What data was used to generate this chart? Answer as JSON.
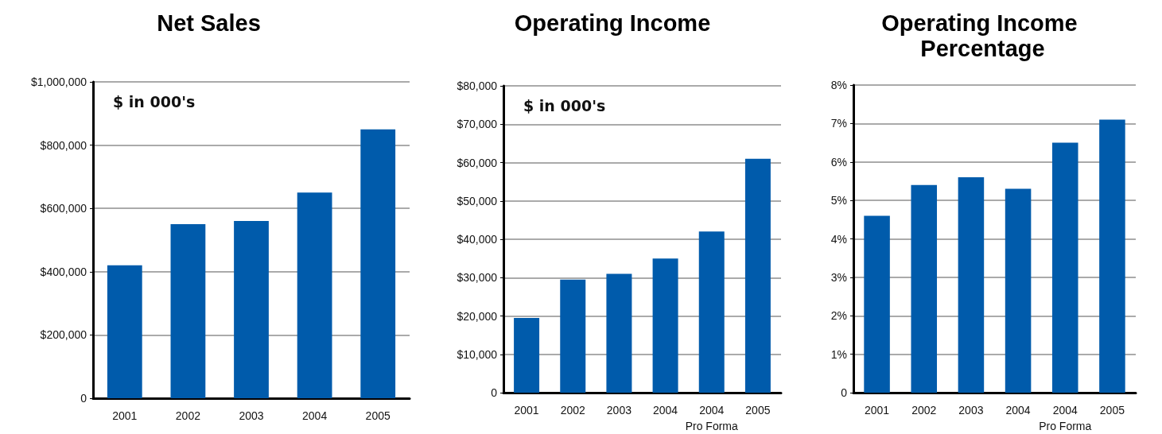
{
  "chart_data": [
    {
      "type": "bar",
      "title": "Net Sales",
      "annotations": [
        "$ in 000's"
      ],
      "categories": [
        "2001",
        "2002",
        "2003",
        "2004",
        "2005"
      ],
      "values": [
        420000,
        550000,
        560000,
        650000,
        850000
      ],
      "color": "#005bab",
      "ylim": [
        0,
        1000000
      ],
      "yticks": [
        {
          "value": 0,
          "label": "0"
        },
        {
          "value": 200000,
          "label": "$200,000"
        },
        {
          "value": 400000,
          "label": "$400,000"
        },
        {
          "value": 600000,
          "label": "$600,000"
        },
        {
          "value": 800000,
          "label": "$800,000"
        },
        {
          "value": 1000000,
          "label": "$1,000,000"
        }
      ],
      "grid": "y"
    },
    {
      "type": "bar",
      "title": "Operating Income",
      "annotations": [
        "$ in 000's"
      ],
      "categories": [
        "2001",
        "2002",
        "2003",
        "2004",
        "2004\nPro Forma",
        "2005"
      ],
      "values": [
        19500,
        29500,
        31000,
        35000,
        42000,
        61000
      ],
      "color": "#005bab",
      "ylim": [
        0,
        80000
      ],
      "yticks": [
        {
          "value": 0,
          "label": "0"
        },
        {
          "value": 10000,
          "label": "$10,000"
        },
        {
          "value": 20000,
          "label": "$20,000"
        },
        {
          "value": 30000,
          "label": "$30,000"
        },
        {
          "value": 40000,
          "label": "$40,000"
        },
        {
          "value": 50000,
          "label": "$50,000"
        },
        {
          "value": 60000,
          "label": "$60,000"
        },
        {
          "value": 70000,
          "label": "$70,000"
        },
        {
          "value": 80000,
          "label": "$80,000"
        }
      ],
      "grid": "y"
    },
    {
      "type": "bar",
      "title": "Operating Income Percentage",
      "categories": [
        "2001",
        "2002",
        "2003",
        "2004",
        "2004\nPro Forma",
        "2005"
      ],
      "values": [
        4.6,
        5.4,
        5.6,
        5.3,
        6.5,
        7.1
      ],
      "color": "#005bab",
      "ylim": [
        0,
        8
      ],
      "yticks": [
        {
          "value": 0,
          "label": "0"
        },
        {
          "value": 1,
          "label": "1%"
        },
        {
          "value": 2,
          "label": "2%"
        },
        {
          "value": 3,
          "label": "3%"
        },
        {
          "value": 4,
          "label": "4%"
        },
        {
          "value": 5,
          "label": "5%"
        },
        {
          "value": 6,
          "label": "6%"
        },
        {
          "value": 7,
          "label": "7%"
        },
        {
          "value": 8,
          "label": "8%"
        }
      ],
      "grid": "y"
    }
  ]
}
